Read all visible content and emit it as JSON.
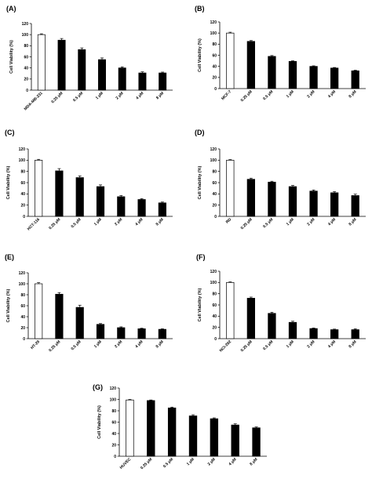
{
  "chart_data": [
    {
      "panel": "(A)",
      "type": "bar",
      "ylabel": "Cell Viability (%)",
      "ylim": [
        0,
        120
      ],
      "yticks": [
        0,
        20,
        40,
        60,
        80,
        100,
        120
      ],
      "categories": [
        "MDA-MB-231",
        "0.25 µM",
        "0.5 µM",
        "1 µM",
        "2 µM",
        "4 µM",
        "8 µM"
      ],
      "values": [
        100,
        90,
        73,
        55,
        40,
        31,
        31
      ],
      "errors": [
        1.5,
        3,
        3,
        3,
        2,
        2,
        1.5
      ],
      "colors": [
        "#ffffff",
        "#000000",
        "#000000",
        "#000000",
        "#000000",
        "#000000",
        "#000000"
      ]
    },
    {
      "panel": "(B)",
      "type": "bar",
      "ylabel": "Cell Viability (%)",
      "ylim": [
        0,
        120
      ],
      "yticks": [
        0,
        20,
        40,
        60,
        80,
        100,
        120
      ],
      "categories": [
        "MCF-7",
        "0.25 µM",
        "0.5 µM",
        "1 µM",
        "2 µM",
        "4 µM",
        "8 µM"
      ],
      "values": [
        100,
        85,
        58,
        49,
        40,
        37,
        32
      ],
      "errors": [
        1.5,
        1.5,
        1.5,
        1,
        1,
        1,
        1
      ],
      "colors": [
        "#ffffff",
        "#000000",
        "#000000",
        "#000000",
        "#000000",
        "#000000",
        "#000000"
      ]
    },
    {
      "panel": "(C)",
      "type": "bar",
      "ylabel": "Cell Viability (%)",
      "ylim": [
        0,
        120
      ],
      "yticks": [
        0,
        20,
        40,
        60,
        80,
        100,
        120
      ],
      "categories": [
        "HCT-116",
        "0.25 µM",
        "0.5 µM",
        "1 µM",
        "2 µM",
        "4 µM",
        "8 µM"
      ],
      "values": [
        100,
        81,
        69,
        53,
        35,
        30,
        24
      ],
      "errors": [
        1.5,
        4,
        3,
        3,
        2,
        1.5,
        1.5
      ],
      "colors": [
        "#ffffff",
        "#000000",
        "#000000",
        "#000000",
        "#000000",
        "#000000",
        "#000000"
      ]
    },
    {
      "panel": "(D)",
      "type": "bar",
      "ylabel": "Cell Viability (%)",
      "ylim": [
        0,
        120
      ],
      "yticks": [
        0,
        20,
        40,
        60,
        80,
        100,
        120
      ],
      "categories": [
        "RD",
        "0.25 µM",
        "0.5 µM",
        "1 µM",
        "2 µM",
        "4 µM",
        "8 µM"
      ],
      "values": [
        100,
        66,
        61,
        53,
        45,
        42,
        37
      ],
      "errors": [
        1,
        2,
        1.5,
        2,
        2,
        2,
        2.5
      ],
      "colors": [
        "#ffffff",
        "#000000",
        "#000000",
        "#000000",
        "#000000",
        "#000000",
        "#000000"
      ]
    },
    {
      "panel": "(E)",
      "type": "bar",
      "ylabel": "Cell Viability (%)",
      "ylim": [
        0,
        120
      ],
      "yticks": [
        0,
        20,
        40,
        60,
        80,
        100,
        120
      ],
      "categories": [
        "HT-29",
        "0.25 µM",
        "0.5 µM",
        "1 µM",
        "2 µM",
        "4 µM",
        "8 µM"
      ],
      "values": [
        100,
        81,
        57,
        26,
        20,
        18,
        17
      ],
      "errors": [
        2,
        3,
        4,
        1.5,
        1.5,
        1,
        1
      ],
      "colors": [
        "#ffffff",
        "#000000",
        "#000000",
        "#000000",
        "#000000",
        "#000000",
        "#000000"
      ]
    },
    {
      "panel": "(F)",
      "type": "bar",
      "ylabel": "Cell Viability (%)",
      "ylim": [
        0,
        120
      ],
      "yticks": [
        0,
        20,
        40,
        60,
        80,
        100,
        120
      ],
      "categories": [
        "NCI-292",
        "0.25 µM",
        "0.5 µM",
        "1 µM",
        "2 µM",
        "4 µM",
        "8 µM"
      ],
      "values": [
        100,
        72,
        45,
        29,
        18,
        16,
        16
      ],
      "errors": [
        1,
        2,
        2,
        2,
        1,
        1,
        1.5
      ],
      "colors": [
        "#ffffff",
        "#000000",
        "#000000",
        "#000000",
        "#000000",
        "#000000",
        "#000000"
      ]
    },
    {
      "panel": "(G)",
      "type": "bar",
      "ylabel": "Cell Viability (%)",
      "ylim": [
        0,
        120
      ],
      "yticks": [
        0,
        20,
        40,
        60,
        80,
        100,
        120
      ],
      "categories": [
        "HUVEC",
        "0.25 µM",
        "0.5 µM",
        "1 µM",
        "2 µM",
        "4 µM",
        "8 µM"
      ],
      "values": [
        99,
        98,
        85,
        71,
        66,
        55,
        50
      ],
      "errors": [
        1,
        1,
        1.5,
        2,
        1.5,
        2,
        1.5
      ],
      "colors": [
        "#ffffff",
        "#000000",
        "#000000",
        "#000000",
        "#000000",
        "#000000",
        "#000000"
      ]
    }
  ]
}
